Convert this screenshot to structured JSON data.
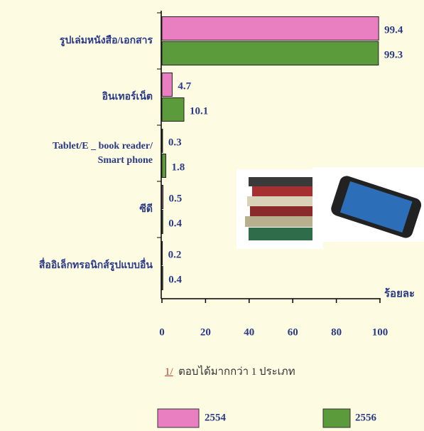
{
  "chart_data": {
    "type": "bar",
    "orientation": "horizontal",
    "categories": [
      "รูปเล่มหนังสือ/เอกสาร",
      "อินเทอร์เน็ต",
      "Tablet/E _ book reader/\nSmart phone",
      "ซีดี",
      "สื่ออิเล็กทรอนิกส์รูปแบบอื่น"
    ],
    "series": [
      {
        "name": "2554",
        "color": "#e97fc0",
        "values": [
          99.4,
          4.7,
          0.3,
          0.5,
          0.2
        ]
      },
      {
        "name": "2556",
        "color": "#5c9b3c",
        "values": [
          99.3,
          10.1,
          1.8,
          0.4,
          0.4
        ]
      }
    ],
    "x_label": "ร้อยละ",
    "xlim": [
      0,
      100
    ],
    "xticks": [
      0,
      20,
      40,
      60,
      80,
      100
    ],
    "footnote": {
      "marker": "1/",
      "text": "ตอบได้มากกว่า 1 ประเภท"
    }
  }
}
